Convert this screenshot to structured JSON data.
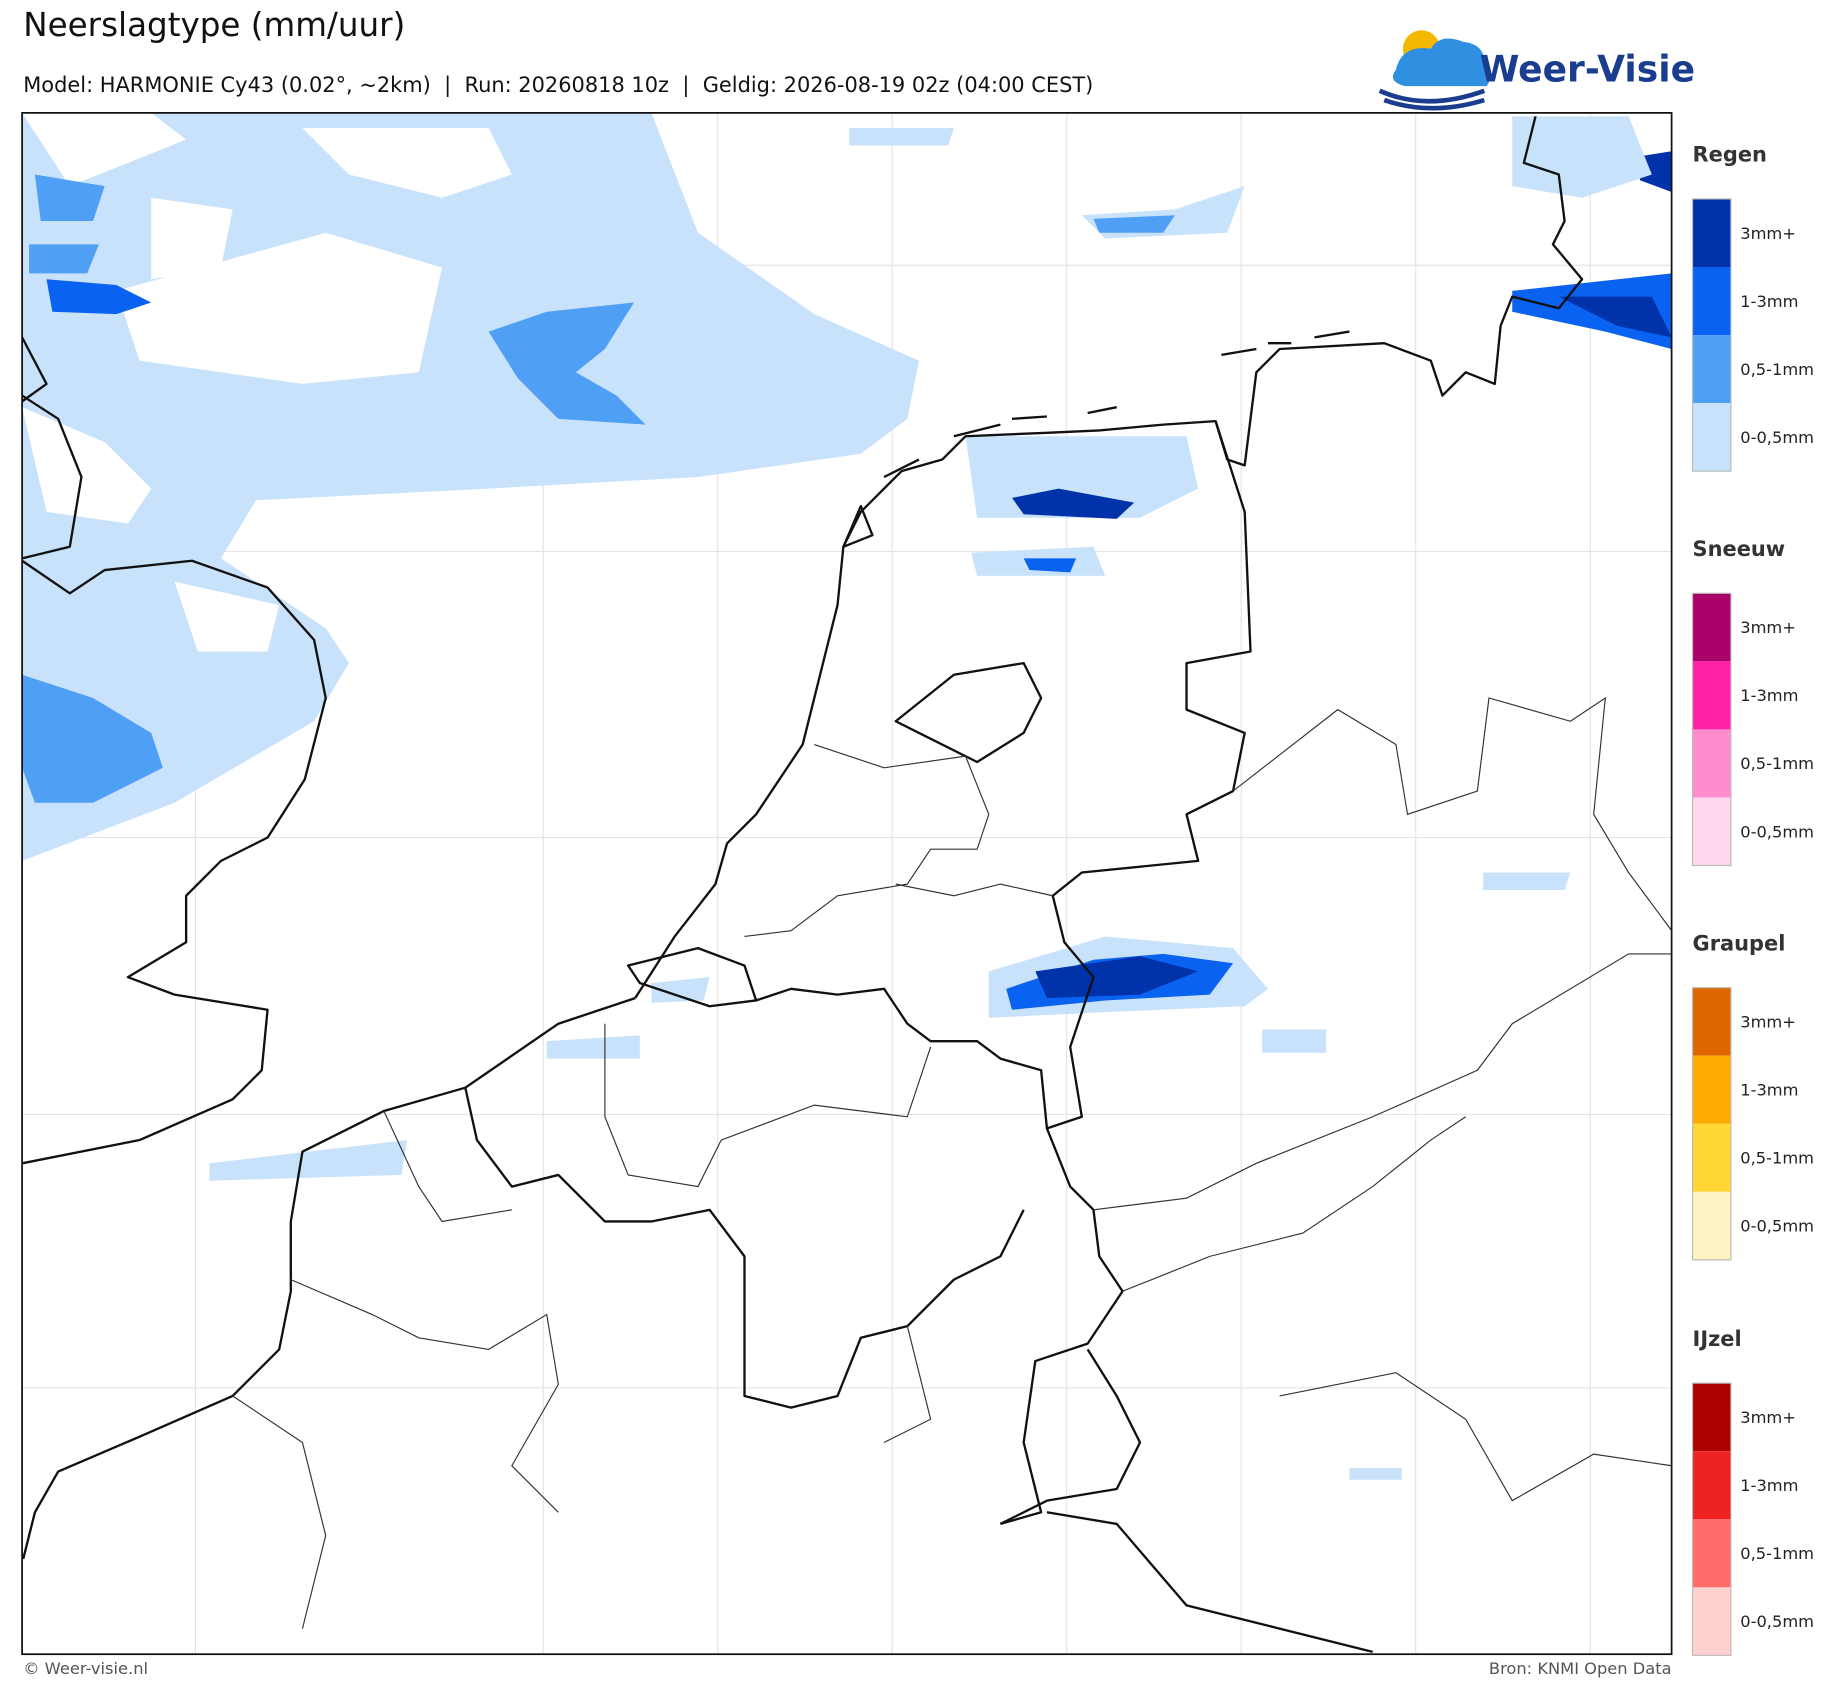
{
  "header": {
    "title": "Neerslagtype (mm/uur)",
    "subtitle": "Model: HARMONIE Cy43 (0.02°, ~2km)  |  Run: 20260818 10z  |  Geldig: 2026-08-19 02z (04:00 CEST)",
    "logo": "Weer-Visie"
  },
  "legends": [
    {
      "title": "Regen",
      "colors": [
        "#0033aa",
        "#0a62f0",
        "#4fa0f5",
        "#c8e2fb"
      ],
      "labels": [
        "3mm+",
        "1-3mm",
        "0,5-1mm",
        "0-0,5mm"
      ]
    },
    {
      "title": "Sneeuw",
      "colors": [
        "#aa006a",
        "#ff22a8",
        "#ff8ccc",
        "#ffd6ec"
      ],
      "labels": [
        "3mm+",
        "1-3mm",
        "0,5-1mm",
        "0-0,5mm"
      ]
    },
    {
      "title": "Graupel",
      "colors": [
        "#dd6600",
        "#ffaa00",
        "#ffd633",
        "#fff3c6"
      ],
      "labels": [
        "3mm+",
        "1-3mm",
        "0,5-1mm",
        "0-0,5mm"
      ]
    },
    {
      "title": "IJzel",
      "colors": [
        "#aa0000",
        "#ee2222",
        "#ff6b6b",
        "#ffd0d0"
      ],
      "labels": [
        "3mm+",
        "1-3mm",
        "0,5-1mm",
        "0-0,5mm"
      ]
    }
  ],
  "footer": {
    "left": "© Weer-visie.nl",
    "right": "Bron: KNMI Open Data"
  }
}
